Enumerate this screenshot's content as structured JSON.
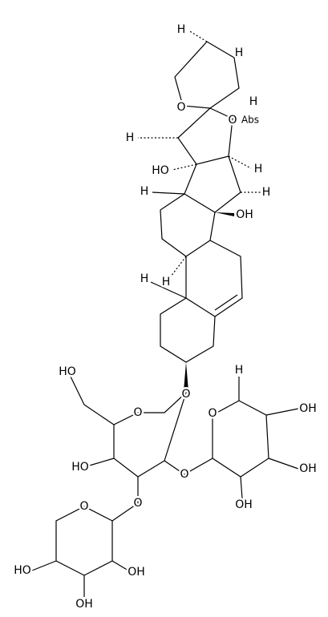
{
  "labels": [
    "H",
    "H",
    "H",
    "O",
    "O",
    "Abs",
    "H",
    "H",
    "HO",
    "H",
    "H",
    "OH",
    "H",
    "H",
    "O",
    "O",
    "HO",
    "HO",
    "O",
    "O",
    "O",
    "H",
    "OH",
    "OH",
    "OH",
    "O",
    "HO",
    "OH",
    "OH"
  ]
}
